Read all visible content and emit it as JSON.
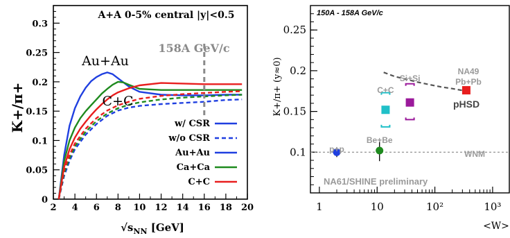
{
  "chart_data": [
    {
      "type": "line",
      "title": "A+A 0-5% central |y|<0.5",
      "annotation": "158A GeV/c",
      "xlabel": "√sNN [GeV]",
      "xlabel_main": "√s",
      "xlabel_sub": "NN",
      "xlabel_unit": " [GeV]",
      "ylabel": "K+/π+",
      "xlim": [
        2,
        20
      ],
      "ylim": [
        0,
        0.33
      ],
      "xticks": [
        2,
        4,
        6,
        8,
        10,
        12,
        14,
        16,
        18,
        20
      ],
      "yticks": [
        0,
        0.05,
        0.1,
        0.15,
        0.2,
        0.25,
        0.3
      ],
      "vline_x": 16,
      "curve_labels": {
        "au": "Au+Au",
        "cc": "C+C"
      },
      "legend": [
        {
          "label": "w/  CSR",
          "color": "#1f3fe0",
          "style": "solid"
        },
        {
          "label": "w/o CSR",
          "color": "#1f3fe0",
          "style": "dashed"
        },
        {
          "label": "Au+Au",
          "color": "#1f3fe0",
          "style": "solid"
        },
        {
          "label": "Ca+Ca",
          "color": "#1e8a1e",
          "style": "solid"
        },
        {
          "label": "C+C",
          "color": "#e81e1e",
          "style": "solid"
        }
      ],
      "series": [
        {
          "name": "Au+Au",
          "color": "#1f3fe0",
          "dashed": false,
          "x": [
            2.5,
            3,
            3.5,
            4,
            4.5,
            5,
            5.5,
            6,
            6.5,
            7,
            7.5,
            8,
            9,
            10,
            12,
            14,
            16,
            18,
            19.5
          ],
          "y": [
            0.0,
            0.075,
            0.125,
            0.155,
            0.175,
            0.19,
            0.201,
            0.208,
            0.213,
            0.216,
            0.213,
            0.206,
            0.192,
            0.183,
            0.178,
            0.177,
            0.177,
            0.178,
            0.178
          ]
        },
        {
          "name": "Ca+Ca",
          "color": "#1e8a1e",
          "dashed": false,
          "x": [
            2.5,
            3,
            3.5,
            4,
            4.5,
            5,
            5.5,
            6,
            6.5,
            7,
            7.5,
            8,
            8.5,
            9,
            10,
            12,
            14,
            16,
            18,
            19.5
          ],
          "y": [
            0.0,
            0.065,
            0.1,
            0.122,
            0.138,
            0.15,
            0.16,
            0.17,
            0.18,
            0.188,
            0.195,
            0.2,
            0.199,
            0.195,
            0.188,
            0.186,
            0.186,
            0.186,
            0.186,
            0.186
          ]
        },
        {
          "name": "C+C",
          "color": "#e81e1e",
          "dashed": false,
          "x": [
            2.5,
            3,
            3.5,
            4,
            4.5,
            5,
            5.5,
            6,
            6.5,
            7,
            7.5,
            8,
            9,
            10,
            12,
            14,
            16,
            18,
            19.5
          ],
          "y": [
            0.0,
            0.055,
            0.085,
            0.105,
            0.12,
            0.132,
            0.143,
            0.153,
            0.162,
            0.17,
            0.177,
            0.182,
            0.189,
            0.194,
            0.198,
            0.197,
            0.196,
            0.196,
            0.196
          ]
        },
        {
          "name": "Au+Au w/o CSR",
          "color": "#1f3fe0",
          "dashed": true,
          "x": [
            2.5,
            3,
            3.5,
            4,
            5,
            6,
            7,
            8,
            9,
            10,
            12,
            14,
            16,
            18,
            19.5
          ],
          "y": [
            0.0,
            0.04,
            0.065,
            0.085,
            0.11,
            0.128,
            0.142,
            0.151,
            0.156,
            0.159,
            0.162,
            0.164,
            0.166,
            0.169,
            0.17
          ]
        },
        {
          "name": "Ca+Ca w/o CSR",
          "color": "#1e8a1e",
          "dashed": true,
          "x": [
            2.5,
            3,
            3.5,
            4,
            5,
            6,
            7,
            8,
            9,
            10,
            12,
            14,
            16,
            18,
            19.5
          ],
          "y": [
            0.0,
            0.045,
            0.07,
            0.09,
            0.115,
            0.133,
            0.146,
            0.155,
            0.161,
            0.165,
            0.17,
            0.173,
            0.175,
            0.177,
            0.178
          ]
        },
        {
          "name": "C+C w/o CSR",
          "color": "#e81e1e",
          "dashed": true,
          "x": [
            2.5,
            3,
            3.5,
            4,
            5,
            6,
            7,
            8,
            9,
            10,
            12,
            14,
            16,
            18,
            19.5
          ],
          "y": [
            0.0,
            0.05,
            0.075,
            0.095,
            0.12,
            0.138,
            0.151,
            0.16,
            0.166,
            0.171,
            0.176,
            0.179,
            0.181,
            0.183,
            0.184
          ]
        }
      ]
    },
    {
      "type": "scatter",
      "title": "150A - 158A GeV/c",
      "xlabel": "<W>",
      "ylabel": "K+/π+ (y≈0)",
      "xscale": "log",
      "xlim": [
        0.7,
        2000
      ],
      "ylim": [
        0.05,
        0.28
      ],
      "yticks": [
        0.1,
        0.15,
        0.2,
        0.25
      ],
      "xtick_labels": [
        "1",
        "10",
        "10²",
        "10³"
      ],
      "xtick_values": [
        1,
        10,
        100,
        1000
      ],
      "reference_line": {
        "label": "WNM",
        "y": 0.1
      },
      "footer": "NA61/SHINE preliminary",
      "model_label": "pHSD",
      "model_line": {
        "x": [
          13,
          20,
          30,
          50,
          80,
          130,
          200,
          350
        ],
        "y": [
          0.198,
          0.193,
          0.19,
          0.186,
          0.183,
          0.18,
          0.178,
          0.175
        ]
      },
      "points": [
        {
          "label": "p+p",
          "x": 2,
          "y": 0.1,
          "err": 0.006,
          "color": "#1f3fe0",
          "marker": "circle"
        },
        {
          "label": "Be+Be",
          "x": 11,
          "y": 0.102,
          "err": 0.013,
          "color": "#1e8a1e",
          "marker": "circle"
        },
        {
          "label": "C+C",
          "x": 14,
          "y": 0.152,
          "sys_lo": 0.131,
          "sys_hi": 0.173,
          "color": "#20c0c8",
          "marker": "square"
        },
        {
          "label": "Si+Si",
          "x": 37,
          "y": 0.161,
          "sys_lo": 0.14,
          "sys_hi": 0.184,
          "color": "#9b1a9b",
          "marker": "square"
        },
        {
          "label": "NA49 Pb+Pb",
          "label_line1": "NA49",
          "label_line2": "Pb+Pb",
          "x": 350,
          "y": 0.176,
          "color": "#e81e1e",
          "marker": "square"
        }
      ]
    }
  ]
}
